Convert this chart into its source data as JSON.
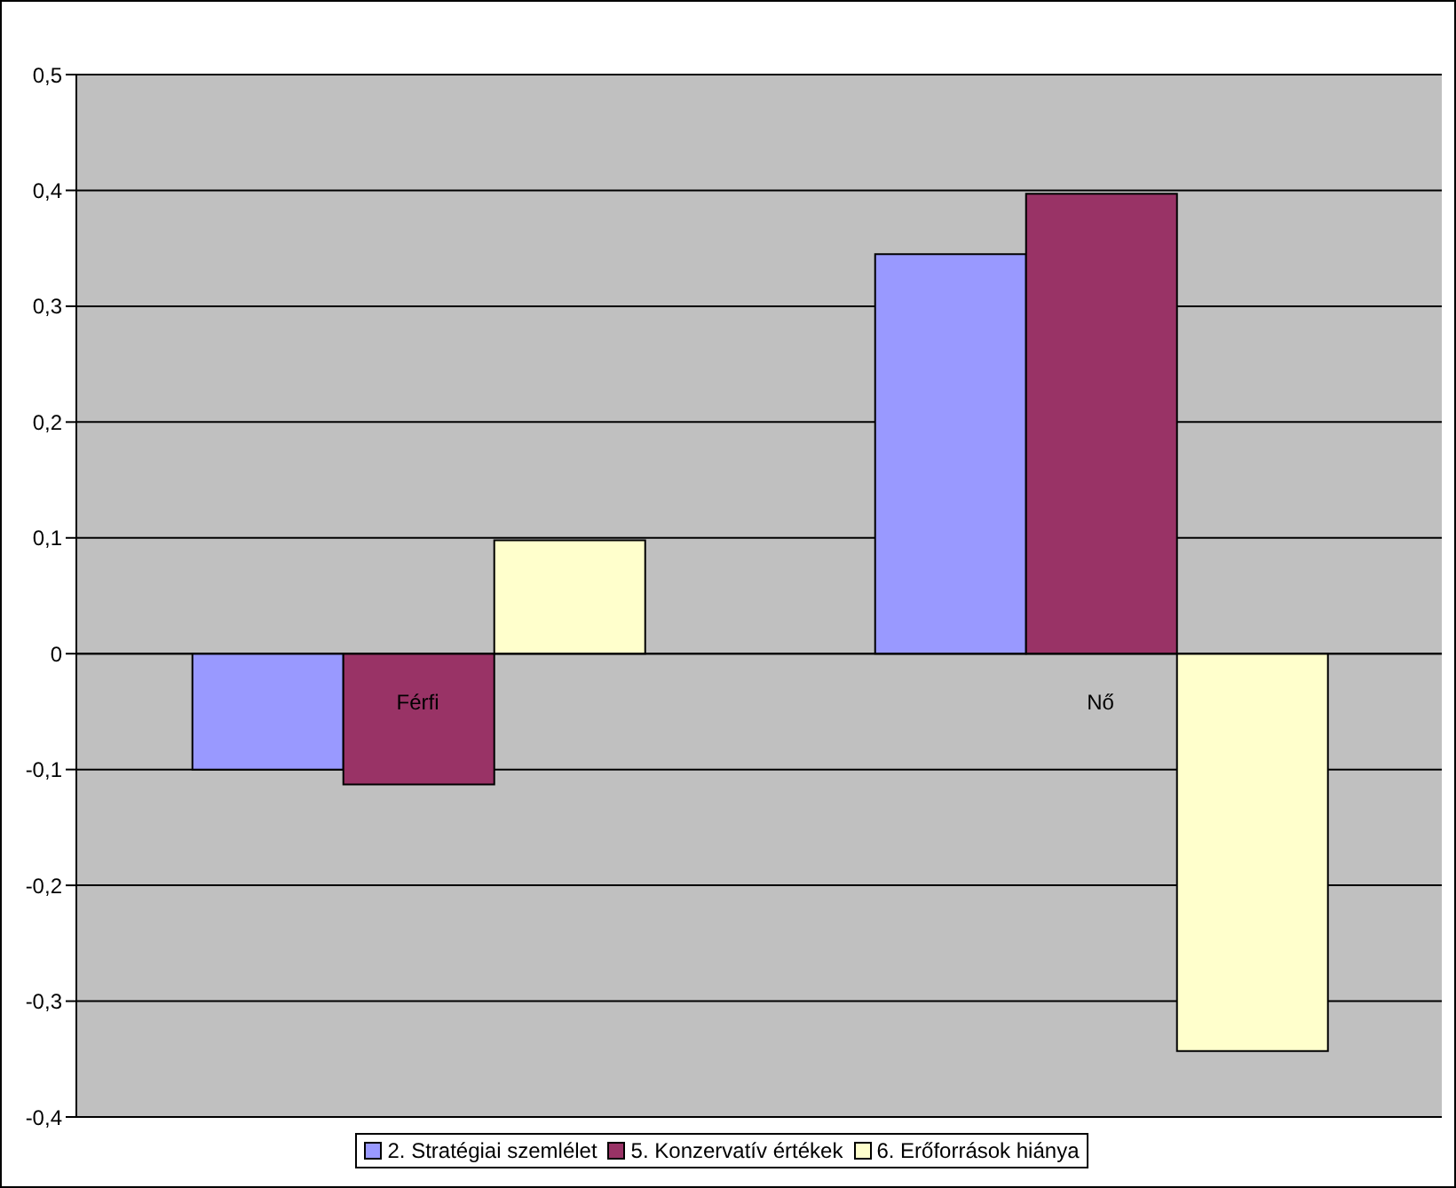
{
  "chart_data": {
    "type": "bar",
    "categories": [
      "Férfi",
      "Nő"
    ],
    "series": [
      {
        "name": "2. Stratégiai szemlélet",
        "color": "#9999ff",
        "values": [
          -0.1,
          0.345
        ]
      },
      {
        "name": "5. Konzervatív értékek",
        "color": "#993366",
        "values": [
          -0.113,
          0.397
        ]
      },
      {
        "name": "6. Erőforrások hiánya",
        "color": "#ffffcc",
        "values": [
          0.098,
          -0.343
        ]
      }
    ],
    "ylim": [
      -0.4,
      0.5
    ],
    "yticks": [
      {
        "value": -0.4,
        "label": "-0,4"
      },
      {
        "value": -0.3,
        "label": "-0,3"
      },
      {
        "value": -0.2,
        "label": "-0,2"
      },
      {
        "value": -0.1,
        "label": "-0,1"
      },
      {
        "value": 0,
        "label": "0"
      },
      {
        "value": 0.1,
        "label": "0,1"
      },
      {
        "value": 0.2,
        "label": "0,2"
      },
      {
        "value": 0.3,
        "label": "0,3"
      },
      {
        "value": 0.4,
        "label": "0,4"
      },
      {
        "value": 0.5,
        "label": "0,5"
      }
    ],
    "grid": "y",
    "legend": "bottom"
  }
}
